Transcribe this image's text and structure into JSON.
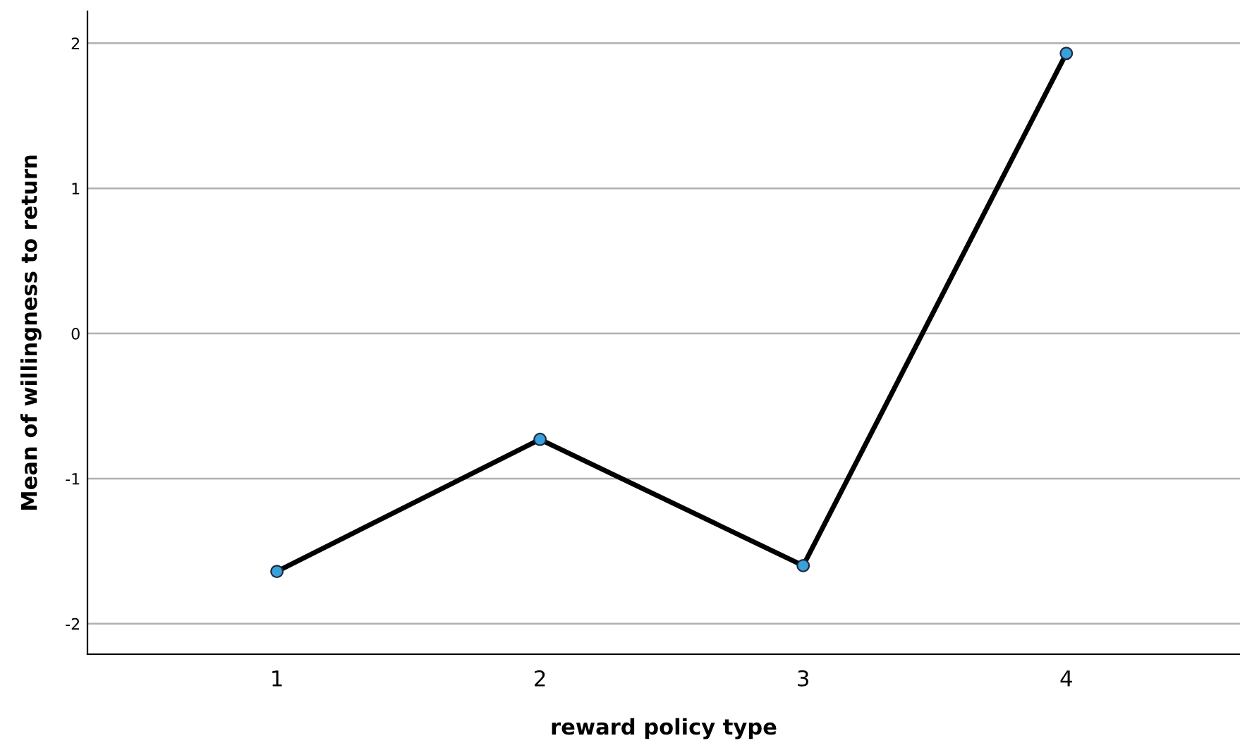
{
  "chart_data": {
    "type": "line",
    "xlabel": "reward policy type",
    "ylabel": "Mean of willingness to return",
    "categories": [
      "1",
      "2",
      "3",
      "4"
    ],
    "series": [
      {
        "color": "#000000",
        "values": [
          -1.64,
          -0.73,
          -1.6,
          1.93
        ]
      }
    ],
    "marker": "circle",
    "line_style": "solid",
    "ylim": [
      -2.21,
      2.22
    ],
    "yticks": [
      -2,
      -1,
      0,
      1,
      2
    ],
    "grid": "y"
  }
}
